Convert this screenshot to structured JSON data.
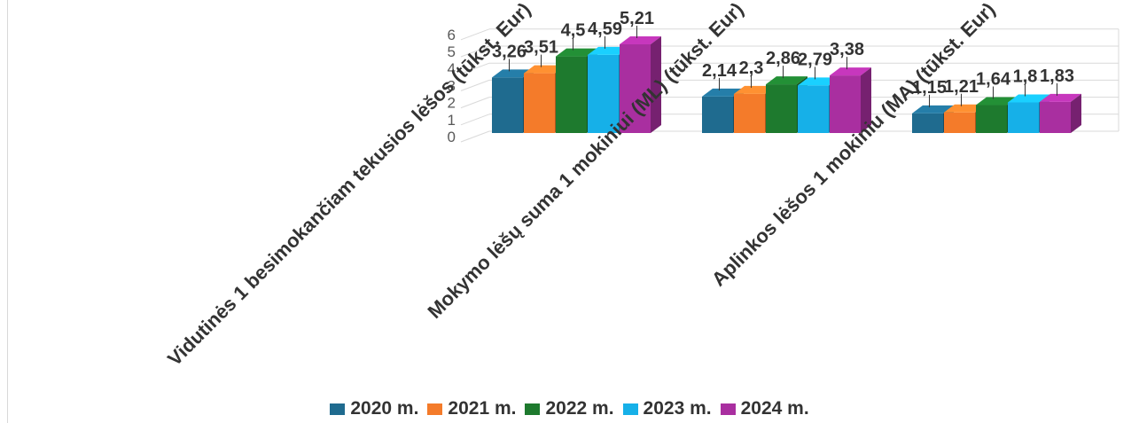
{
  "chart_data": {
    "type": "bar",
    "subtype": "3d-clustered-column",
    "categories": [
      "Vidutinės 1 besimokančiam tekusios lėšos (tūkst. Eur)",
      "Mokymo lėšų suma 1 mokiniui (ML) (tūkst. Eur)",
      "Aplinkos lėšos 1 mokiniu (MA) (tūkst. Eur)"
    ],
    "series": [
      {
        "name": "2020 m.",
        "color": "#1f6b8f",
        "values": [
          3.26,
          2.14,
          1.15
        ]
      },
      {
        "name": "2021 m.",
        "color": "#f47b2a",
        "values": [
          3.51,
          2.3,
          1.21
        ]
      },
      {
        "name": "2022 m.",
        "color": "#1e7a2e",
        "values": [
          4.5,
          2.86,
          1.64
        ]
      },
      {
        "name": "2023 m.",
        "color": "#16b0e8",
        "values": [
          4.59,
          2.79,
          1.8
        ]
      },
      {
        "name": "2024 m.",
        "color": "#a92fa0",
        "values": [
          5.21,
          3.38,
          1.83
        ]
      }
    ],
    "value_labels": [
      [
        "3,26",
        "3,51",
        "4,5",
        "4,59",
        "5,21"
      ],
      [
        "2,14",
        "2,3",
        "2,86",
        "2,79",
        "3,38"
      ],
      [
        "1,15",
        "1,21",
        "1,64",
        "1,8",
        "1,83"
      ]
    ],
    "ylim": [
      0,
      6
    ],
    "yticks": [
      "0",
      "1",
      "2",
      "3",
      "4",
      "5",
      "6"
    ],
    "grid": true,
    "legend_position": "bottom"
  }
}
